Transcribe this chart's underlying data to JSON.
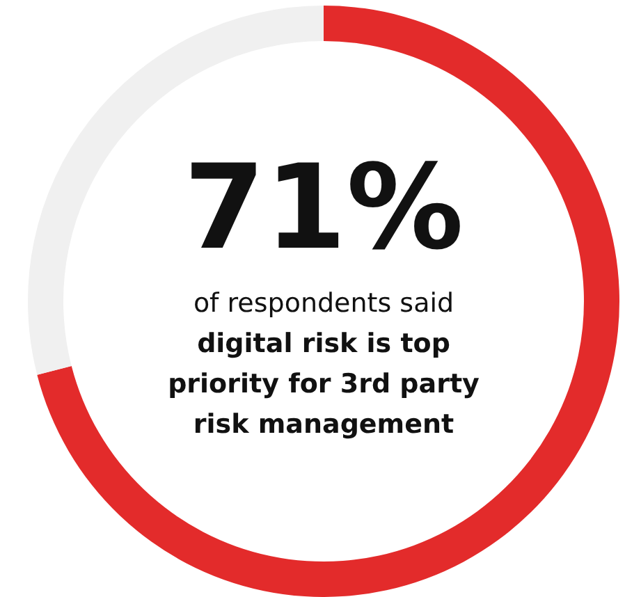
{
  "chart_data": {
    "type": "donut",
    "categories": [
      null,
      null
    ],
    "values": [
      71,
      29
    ],
    "colors": [
      "#e32b2b",
      "#f0f0f0"
    ],
    "value_labels": [
      "71%",
      null
    ],
    "annotations": [
      "of respondents said",
      "digital risk is top priority for 3rd party risk management"
    ],
    "legend": false
  }
}
